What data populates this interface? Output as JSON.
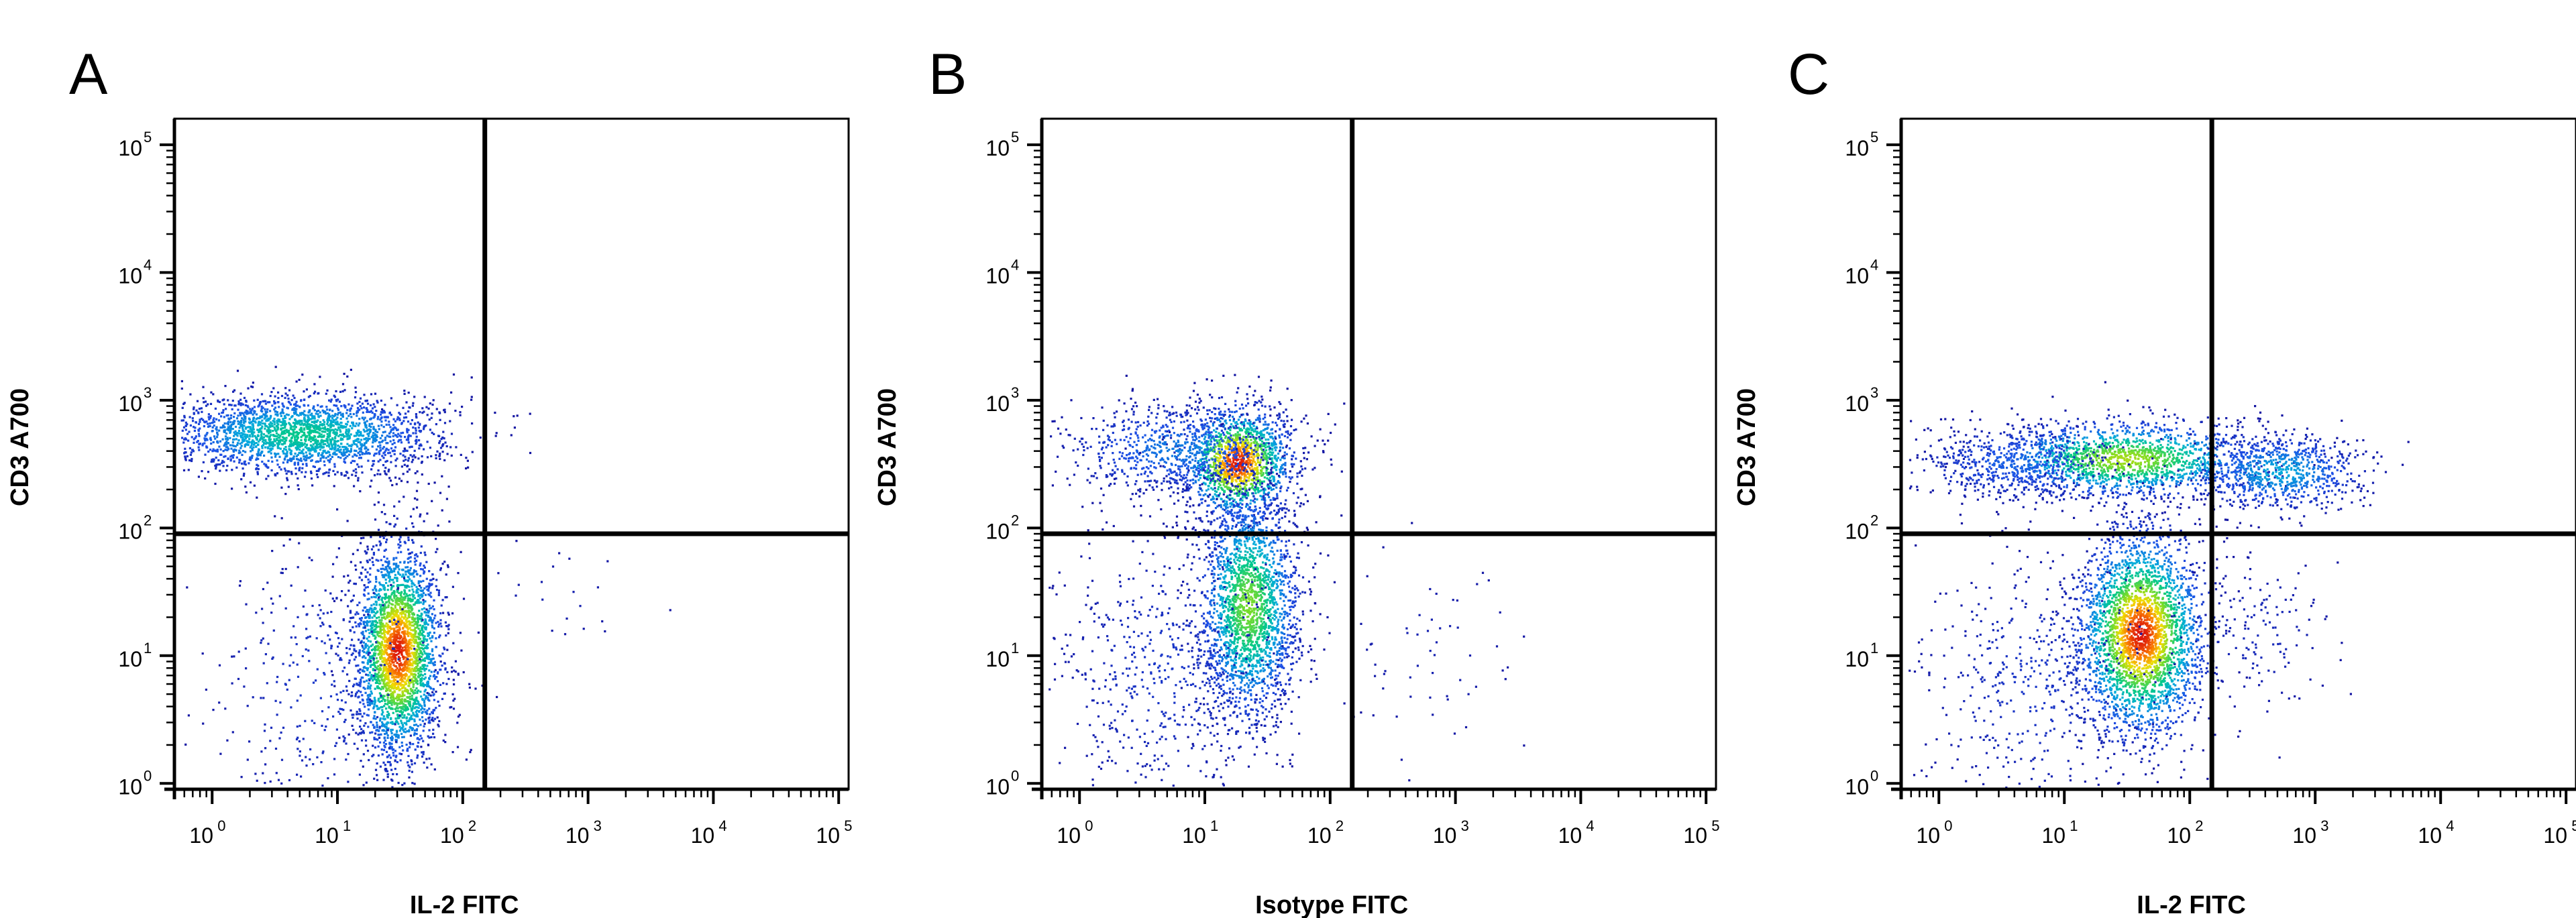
{
  "chart_data": [
    {
      "type": "scatter",
      "panel_label": "A",
      "xlabel": "IL-2 FITC",
      "ylabel": "CD3 A700",
      "x_scale": "log",
      "y_scale": "log",
      "xlim": [
        0.5,
        120000
      ],
      "ylim": [
        0.9,
        160000
      ],
      "x_ticks": [
        "10",
        "10",
        "10",
        "10",
        "10",
        "10"
      ],
      "x_tick_exponents": [
        "0",
        "1",
        "2",
        "3",
        "4",
        "5"
      ],
      "y_ticks": [
        "10",
        "10",
        "10",
        "10",
        "10",
        "10"
      ],
      "y_tick_exponents": [
        "0",
        "1",
        "2",
        "3",
        "4",
        "5"
      ],
      "quadrant_gate": {
        "x": 150,
        "y": 90
      },
      "populations": [
        {
          "center": [
            5,
            550
          ],
          "spread_decades": [
            0.55,
            0.16
          ],
          "count": 2400,
          "peak": 0.55
        },
        {
          "center": [
            30,
            11
          ],
          "spread_decades": [
            0.17,
            0.42
          ],
          "count": 2800,
          "peak": 1.0
        },
        {
          "center": [
            8,
            6
          ],
          "spread_decades": [
            0.5,
            0.6
          ],
          "count": 420,
          "peak": 0.12
        },
        {
          "center": [
            500,
            28
          ],
          "spread_decades": [
            0.4,
            0.2
          ],
          "count": 24,
          "peak": 0.05
        }
      ],
      "grid": false
    },
    {
      "type": "scatter",
      "panel_label": "B",
      "xlabel": "Isotype FITC",
      "ylabel": "CD3 A700",
      "x_scale": "log",
      "y_scale": "log",
      "xlim": [
        0.5,
        120000
      ],
      "ylim": [
        0.9,
        160000
      ],
      "x_ticks": [
        "10",
        "10",
        "10",
        "10",
        "10",
        "10"
      ],
      "x_tick_exponents": [
        "0",
        "1",
        "2",
        "3",
        "4",
        "5"
      ],
      "y_ticks": [
        "10",
        "10",
        "10",
        "10",
        "10",
        "10"
      ],
      "y_tick_exponents": [
        "0",
        "1",
        "2",
        "3",
        "4",
        "5"
      ],
      "quadrant_gate": {
        "x": 150,
        "y": 90
      },
      "populations": [
        {
          "center": [
            18,
            330
          ],
          "spread_decades": [
            0.22,
            0.22
          ],
          "count": 1500,
          "peak": 1.0
        },
        {
          "center": [
            6,
            420
          ],
          "spread_decades": [
            0.45,
            0.18
          ],
          "count": 800,
          "peak": 0.3
        },
        {
          "center": [
            22,
            25
          ],
          "spread_decades": [
            0.2,
            0.45
          ],
          "count": 2200,
          "peak": 0.7
        },
        {
          "center": [
            5,
            8
          ],
          "spread_decades": [
            0.5,
            0.6
          ],
          "count": 650,
          "peak": 0.12
        },
        {
          "center": [
            600,
            12
          ],
          "spread_decades": [
            0.45,
            0.45
          ],
          "count": 60,
          "peak": 0.05
        }
      ],
      "grid": false
    },
    {
      "type": "scatter",
      "panel_label": "C",
      "xlabel": "IL-2 FITC",
      "ylabel": "CD3 A700",
      "x_scale": "log",
      "y_scale": "log",
      "xlim": [
        0.5,
        120000
      ],
      "ylim": [
        0.9,
        160000
      ],
      "x_ticks": [
        "10",
        "10",
        "10",
        "10",
        "10",
        "10"
      ],
      "x_tick_exponents": [
        "0",
        "1",
        "2",
        "3",
        "4",
        "5"
      ],
      "y_ticks": [
        "10",
        "10",
        "10",
        "10",
        "10",
        "10"
      ],
      "y_tick_exponents": [
        "0",
        "1",
        "2",
        "3",
        "4",
        "5"
      ],
      "quadrant_gate": {
        "x": 150,
        "y": 90
      },
      "populations": [
        {
          "center": [
            30,
            350
          ],
          "spread_decades": [
            0.55,
            0.15
          ],
          "count": 1700,
          "peak": 0.75
        },
        {
          "center": [
            500,
            280
          ],
          "spread_decades": [
            0.35,
            0.15
          ],
          "count": 800,
          "peak": 0.4
        },
        {
          "center": [
            4,
            330
          ],
          "spread_decades": [
            0.4,
            0.15
          ],
          "count": 500,
          "peak": 0.25
        },
        {
          "center": [
            40,
            15
          ],
          "spread_decades": [
            0.25,
            0.4
          ],
          "count": 3000,
          "peak": 1.0
        },
        {
          "center": [
            6,
            6
          ],
          "spread_decades": [
            0.5,
            0.55
          ],
          "count": 500,
          "peak": 0.12
        },
        {
          "center": [
            350,
            15
          ],
          "spread_decades": [
            0.35,
            0.35
          ],
          "count": 150,
          "peak": 0.08
        }
      ],
      "grid": false
    }
  ]
}
